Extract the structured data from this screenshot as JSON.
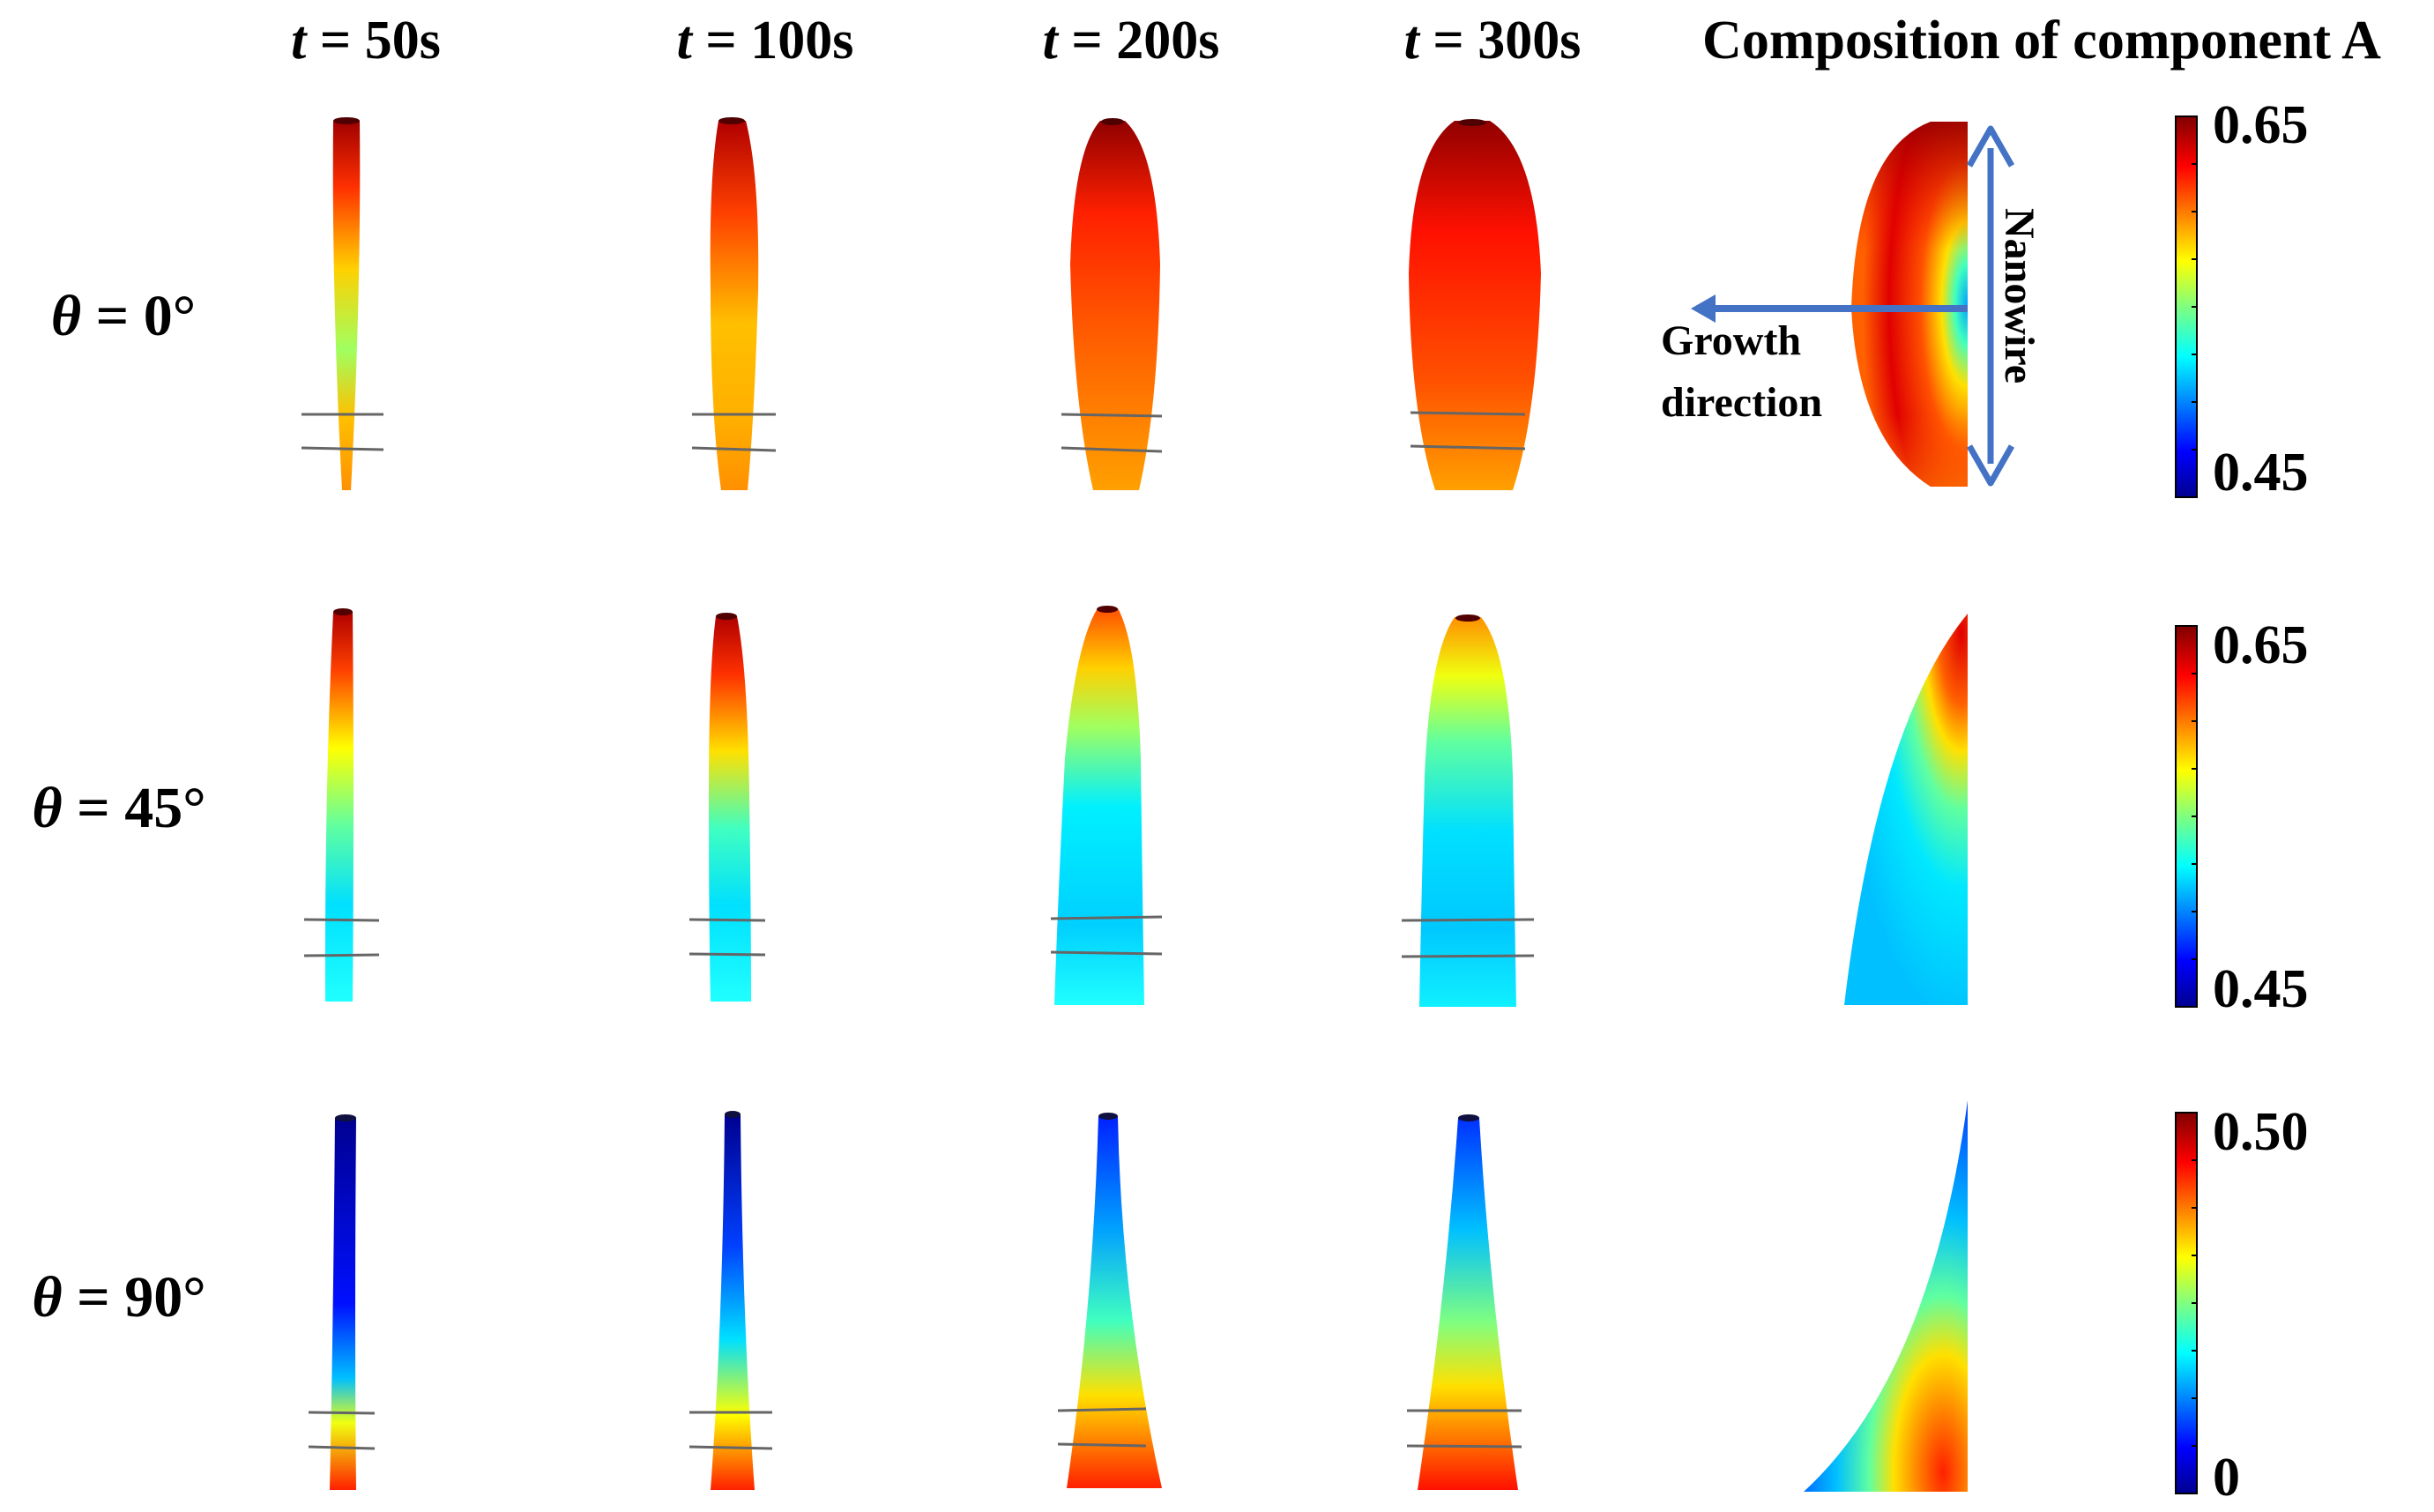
{
  "columns": [
    {
      "var": "t",
      "value": " = 50s"
    },
    {
      "var": "t",
      "value": " = 100s"
    },
    {
      "var": "t",
      "value": " = 200s"
    },
    {
      "var": "t",
      "value": " = 300s"
    }
  ],
  "composition_title": "Composition of component A",
  "rows": [
    {
      "var": "θ",
      "value": " = 0°",
      "scale_max": "0.65",
      "scale_min": "0.45"
    },
    {
      "var": "θ",
      "value": " = 45°",
      "scale_max": "0.65",
      "scale_min": "0.45"
    },
    {
      "var": "θ",
      "value": " = 90°",
      "scale_max": "0.50",
      "scale_min": "0"
    }
  ],
  "annotations": {
    "growth_line1": "Growth",
    "growth_line2": "direction",
    "nanowire": "Nanowire"
  },
  "arrow_color": "#4472C4",
  "colormap": "jet"
}
